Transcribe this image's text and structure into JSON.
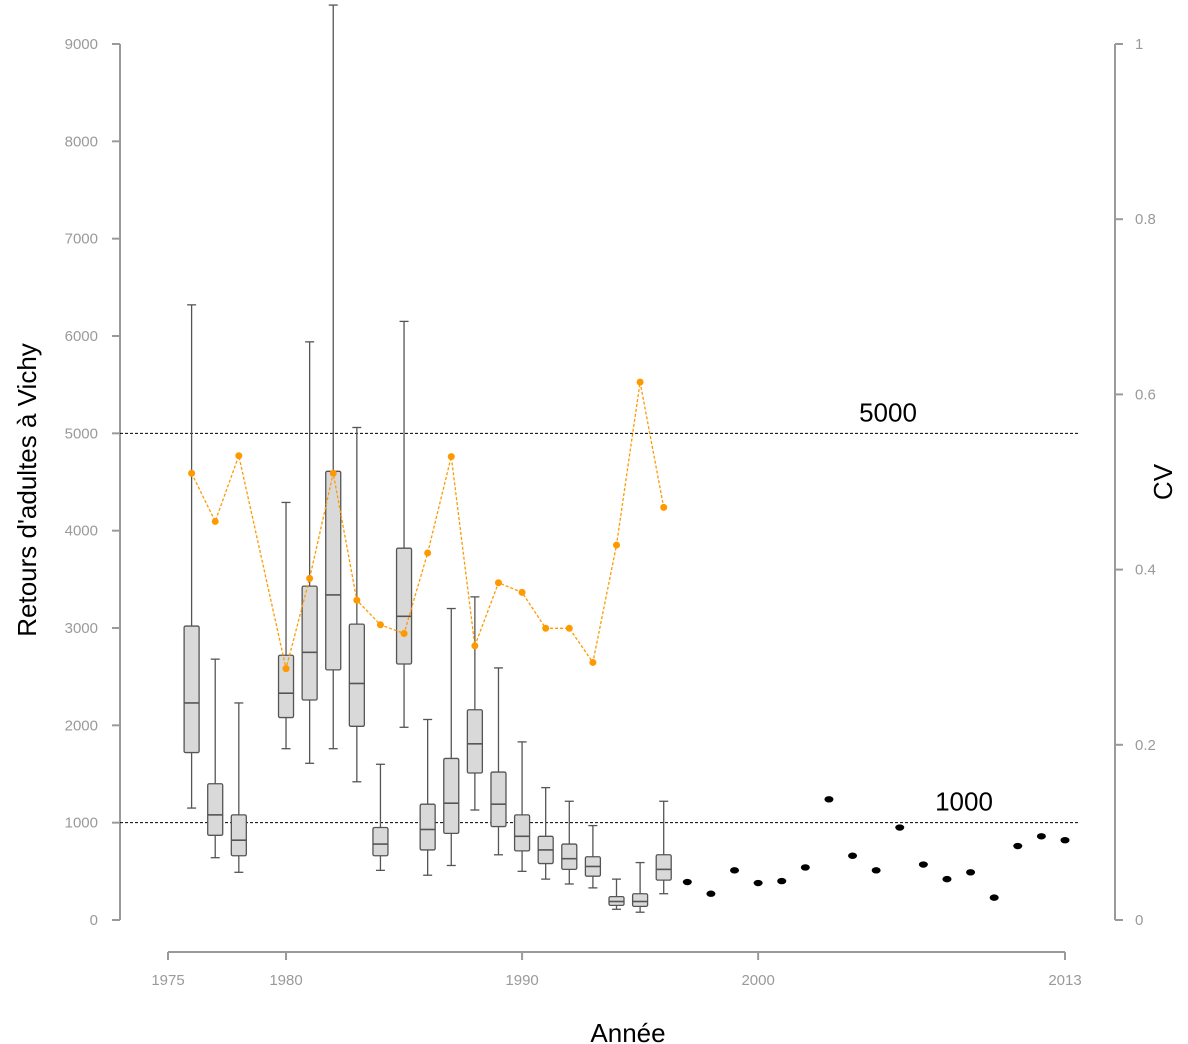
{
  "chart_data": {
    "type": "box",
    "xlabel": "Année",
    "ylabel_left": "Retours d'adultes à Vichy",
    "ylabel_right": "CV",
    "x_range": [
      1975,
      2013
    ],
    "x_ticks": [
      1975,
      1980,
      1990,
      2000,
      2013
    ],
    "y_left_range": [
      0,
      9000
    ],
    "y_left_ticks": [
      0,
      1000,
      2000,
      3000,
      4000,
      5000,
      6000,
      7000,
      8000,
      9000
    ],
    "y_right_range": [
      0,
      1
    ],
    "y_right_ticks": [
      0,
      0.2,
      0.4,
      0.6,
      0.8,
      1
    ],
    "y_right_tick_labels": [
      "0",
      "0.2",
      "0.4",
      "0.6",
      "0.8",
      "1"
    ],
    "grid": false,
    "reference_lines": [
      {
        "value": 5000,
        "label": "5000"
      },
      {
        "value": 1000,
        "label": "1000"
      }
    ],
    "boxplots": [
      {
        "year": 1976,
        "low": 1150,
        "q1": 1720,
        "median": 2230,
        "q3": 3020,
        "high": 6320
      },
      {
        "year": 1977,
        "low": 640,
        "q1": 870,
        "median": 1080,
        "q3": 1400,
        "high": 2680
      },
      {
        "year": 1978,
        "low": 490,
        "q1": 660,
        "median": 820,
        "q3": 1080,
        "high": 2230
      },
      {
        "year": 1980,
        "low": 1760,
        "q1": 2080,
        "median": 2330,
        "q3": 2720,
        "high": 4290
      },
      {
        "year": 1981,
        "low": 1610,
        "q1": 2260,
        "median": 2750,
        "q3": 3430,
        "high": 5940
      },
      {
        "year": 1982,
        "low": 1760,
        "q1": 2570,
        "median": 3340,
        "q3": 4610,
        "high": 9400
      },
      {
        "year": 1983,
        "low": 1420,
        "q1": 1990,
        "median": 2430,
        "q3": 3040,
        "high": 5060
      },
      {
        "year": 1984,
        "low": 510,
        "q1": 660,
        "median": 780,
        "q3": 950,
        "high": 1600
      },
      {
        "year": 1985,
        "low": 1980,
        "q1": 2630,
        "median": 3120,
        "q3": 3820,
        "high": 6150
      },
      {
        "year": 1986,
        "low": 460,
        "q1": 720,
        "median": 930,
        "q3": 1190,
        "high": 2060
      },
      {
        "year": 1987,
        "low": 560,
        "q1": 890,
        "median": 1200,
        "q3": 1660,
        "high": 3200
      },
      {
        "year": 1988,
        "low": 1130,
        "q1": 1510,
        "median": 1810,
        "q3": 2160,
        "high": 3320
      },
      {
        "year": 1989,
        "low": 670,
        "q1": 960,
        "median": 1190,
        "q3": 1520,
        "high": 2590
      },
      {
        "year": 1990,
        "low": 500,
        "q1": 710,
        "median": 860,
        "q3": 1080,
        "high": 1830
      },
      {
        "year": 1991,
        "low": 420,
        "q1": 580,
        "median": 720,
        "q3": 860,
        "high": 1360
      },
      {
        "year": 1992,
        "low": 370,
        "q1": 520,
        "median": 630,
        "q3": 780,
        "high": 1220
      },
      {
        "year": 1993,
        "low": 330,
        "q1": 450,
        "median": 550,
        "q3": 650,
        "high": 970
      },
      {
        "year": 1994,
        "low": 110,
        "q1": 150,
        "median": 190,
        "q3": 240,
        "high": 420
      },
      {
        "year": 1995,
        "low": 80,
        "q1": 140,
        "median": 190,
        "q3": 270,
        "high": 590
      },
      {
        "year": 1996,
        "low": 270,
        "q1": 410,
        "median": 520,
        "q3": 670,
        "high": 1220
      }
    ],
    "point_counts": [
      {
        "year": 1997,
        "value": 390
      },
      {
        "year": 1998,
        "value": 270
      },
      {
        "year": 1999,
        "value": 510
      },
      {
        "year": 2000,
        "value": 380
      },
      {
        "year": 2001,
        "value": 400
      },
      {
        "year": 2002,
        "value": 540
      },
      {
        "year": 2003,
        "value": 1240
      },
      {
        "year": 2004,
        "value": 660
      },
      {
        "year": 2005,
        "value": 510
      },
      {
        "year": 2006,
        "value": 950
      },
      {
        "year": 2007,
        "value": 570
      },
      {
        "year": 2008,
        "value": 420
      },
      {
        "year": 2009,
        "value": 490
      },
      {
        "year": 2010,
        "value": 230
      },
      {
        "year": 2011,
        "value": 760
      },
      {
        "year": 2012,
        "value": 860
      },
      {
        "year": 2013,
        "value": 820
      }
    ],
    "cv_series": [
      {
        "year": 1976,
        "cv": 0.51
      },
      {
        "year": 1977,
        "cv": 0.455
      },
      {
        "year": 1978,
        "cv": 0.53
      },
      {
        "year": 1980,
        "cv": 0.287
      },
      {
        "year": 1981,
        "cv": 0.39
      },
      {
        "year": 1982,
        "cv": 0.51
      },
      {
        "year": 1983,
        "cv": 0.365
      },
      {
        "year": 1984,
        "cv": 0.337
      },
      {
        "year": 1985,
        "cv": 0.327
      },
      {
        "year": 1986,
        "cv": 0.419
      },
      {
        "year": 1987,
        "cv": 0.529
      },
      {
        "year": 1988,
        "cv": 0.313
      },
      {
        "year": 1989,
        "cv": 0.385
      },
      {
        "year": 1990,
        "cv": 0.374
      },
      {
        "year": 1991,
        "cv": 0.333
      },
      {
        "year": 1992,
        "cv": 0.333
      },
      {
        "year": 1993,
        "cv": 0.294
      },
      {
        "year": 1994,
        "cv": 0.428
      },
      {
        "year": 1995,
        "cv": 0.614
      },
      {
        "year": 1996,
        "cv": 0.471
      }
    ],
    "colors": {
      "box_fill": "#d9d9d9",
      "box_stroke": "#555555",
      "axis": "#9a9a9a",
      "cv_line": "#ff9900",
      "points": "#000000",
      "reference": "#000000"
    }
  }
}
